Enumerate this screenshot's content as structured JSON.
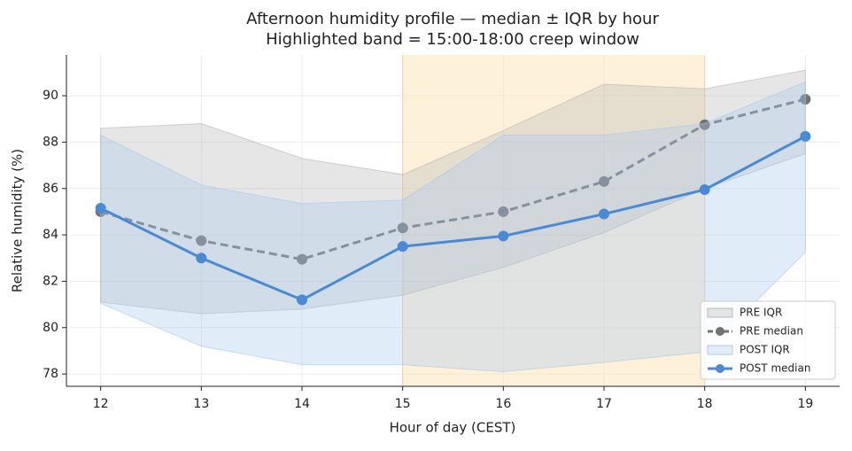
{
  "chart_data": {
    "type": "line",
    "title": "Afternoon humidity profile — median ± IQR by hour",
    "subtitle": "Highlighted band = 15:00-18:00 creep window",
    "x_label": "Hour of day (CEST)",
    "y_label": "Relative humidity (%)",
    "x": [
      12,
      13,
      14,
      15,
      16,
      17,
      18,
      19
    ],
    "xlim": [
      11.66,
      19.34
    ],
    "ylim": [
      77.47,
      91.76
    ],
    "xticks": [
      12,
      13,
      14,
      15,
      16,
      17,
      18,
      19
    ],
    "yticks": [
      78,
      80,
      82,
      84,
      86,
      88,
      90
    ],
    "grid": true,
    "legend": "lower right",
    "highlight": [
      15,
      18
    ],
    "highlight_color": "#fbe3b5",
    "series": [
      {
        "name": "PRE IQR",
        "kind": "band",
        "color": "#b8b8b8",
        "lower": [
          81.1,
          80.6,
          80.8,
          81.4,
          82.6,
          84.1,
          86.0,
          87.5
        ],
        "upper": [
          88.6,
          88.8,
          87.3,
          86.6,
          88.5,
          90.5,
          90.3,
          91.1
        ]
      },
      {
        "name": "PRE median",
        "kind": "line",
        "color": "#737373",
        "dash": true,
        "values": [
          85.0,
          83.75,
          82.95,
          84.3,
          85.0,
          86.3,
          88.75,
          89.85
        ]
      },
      {
        "name": "POST IQR",
        "kind": "band",
        "color": "#a9c8ee",
        "lower": [
          81.05,
          79.2,
          78.4,
          78.4,
          78.1,
          78.5,
          78.95,
          83.25
        ],
        "upper": [
          88.3,
          86.15,
          85.35,
          85.5,
          88.3,
          88.3,
          88.8,
          90.6
        ]
      },
      {
        "name": "POST median",
        "kind": "line",
        "color": "#4a8ad4",
        "dash": false,
        "values": [
          85.15,
          83.0,
          81.2,
          83.5,
          83.95,
          84.9,
          85.95,
          88.25
        ]
      }
    ]
  }
}
